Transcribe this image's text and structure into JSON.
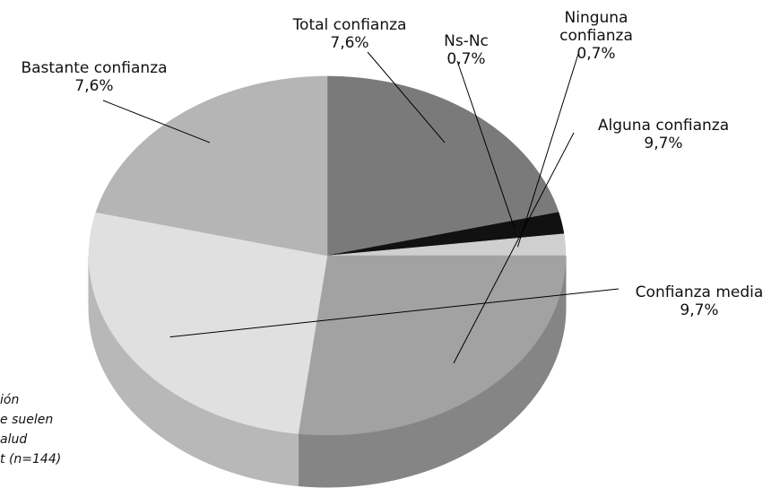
{
  "chart_data": {
    "type": "pie3d",
    "categories": [
      "Total confianza",
      "Ns-Nc",
      "Ninguna confianza",
      "Alguna confianza",
      "Confianza media",
      "Bastante confianza"
    ],
    "values": [
      7.6,
      0.7,
      0.7,
      9.7,
      9.7,
      7.6
    ],
    "value_labels": [
      "7,6%",
      "0,7%",
      "0,7%",
      "9,7%",
      "9,7%",
      "7,6%"
    ],
    "colors": [
      "#7a7a7a",
      "#111111",
      "#cfcfcf",
      "#a2a2a2",
      "#e0e0e0",
      "#b5b5b5"
    ],
    "caption": [
      "ión",
      "e suelen",
      "alud",
      "t (n=144)"
    ]
  }
}
